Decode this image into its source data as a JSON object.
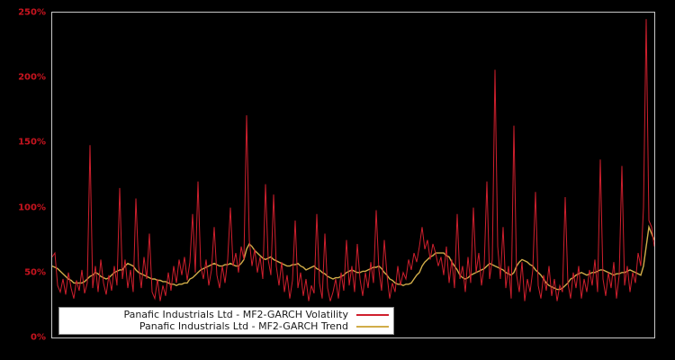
{
  "figure": {
    "background_color": "#000000",
    "plot_border_color": "#c8c8c8"
  },
  "y_axis": {
    "label_color": "#c8141f",
    "ticks": [
      {
        "value": 0,
        "label": "0%"
      },
      {
        "value": 50,
        "label": "50%"
      },
      {
        "value": 100,
        "label": "100%"
      },
      {
        "value": 150,
        "label": "150%"
      },
      {
        "value": 200,
        "label": "200%"
      },
      {
        "value": 250,
        "label": "250%"
      }
    ]
  },
  "legend": {
    "entries": [
      {
        "label": "Panafic Industrials Ltd - MF2-GARCH Volatility",
        "color": "#cf1f2d"
      },
      {
        "label": "Panafic Industrials Ltd - MF2-GARCH Trend",
        "color": "#d1ad49"
      }
    ]
  },
  "chart_data": {
    "type": "line",
    "title": "",
    "xlabel": "",
    "ylabel": "",
    "x_axis_labels": "none (unlabeled time index)",
    "ylim": [
      0,
      250
    ],
    "y_unit": "percent",
    "grid": false,
    "legend_position": "inside bottom-left",
    "series": [
      {
        "name": "Panafic Industrials Ltd - MF2-GARCH Volatility",
        "color": "#cf1f2d",
        "line_width": 1,
        "values": [
          62,
          65,
          40,
          35,
          45,
          33,
          50,
          38,
          30,
          44,
          36,
          52,
          34,
          42,
          148,
          38,
          55,
          35,
          60,
          42,
          33,
          48,
          36,
          55,
          40,
          115,
          45,
          60,
          38,
          52,
          35,
          107,
          55,
          38,
          62,
          45,
          80,
          35,
          30,
          45,
          28,
          40,
          32,
          50,
          36,
          55,
          42,
          60,
          48,
          62,
          44,
          58,
          95,
          50,
          120,
          55,
          45,
          60,
          40,
          52,
          85,
          48,
          38,
          55,
          42,
          60,
          100,
          55,
          65,
          50,
          70,
          60,
          171,
          75,
          55,
          68,
          50,
          62,
          45,
          118,
          60,
          48,
          110,
          55,
          40,
          58,
          35,
          48,
          30,
          44,
          90,
          38,
          50,
          32,
          45,
          28,
          40,
          34,
          95,
          42,
          30,
          80,
          38,
          28,
          35,
          45,
          30,
          50,
          36,
          75,
          40,
          55,
          35,
          72,
          45,
          32,
          50,
          38,
          58,
          42,
          98,
          52,
          36,
          75,
          48,
          30,
          42,
          35,
          55,
          40,
          50,
          45,
          60,
          52,
          65,
          58,
          70,
          85,
          68,
          75,
          60,
          72,
          65,
          55,
          62,
          48,
          70,
          42,
          60,
          38,
          95,
          45,
          55,
          35,
          62,
          42,
          100,
          50,
          65,
          40,
          55,
          120,
          45,
          60,
          206,
          70,
          45,
          85,
          38,
          55,
          30,
          163,
          48,
          35,
          58,
          28,
          45,
          35,
          52,
          112,
          40,
          30,
          48,
          36,
          55,
          32,
          45,
          28,
          40,
          35,
          108,
          42,
          30,
          50,
          38,
          55,
          30,
          45,
          35,
          52,
          40,
          60,
          35,
          137,
          45,
          32,
          50,
          38,
          58,
          30,
          48,
          132,
          40,
          55,
          35,
          50,
          42,
          65,
          55,
          100,
          245,
          90,
          85,
          70
        ]
      },
      {
        "name": "Panafic Industrials Ltd - MF2-GARCH Trend",
        "color": "#d1ad49",
        "line_width": 1.4,
        "values": [
          55,
          54,
          53,
          51,
          49,
          47,
          45,
          44,
          42,
          42,
          42,
          42,
          43,
          45,
          47,
          48,
          50,
          49,
          47,
          46,
          45,
          46,
          48,
          50,
          51,
          52,
          52,
          55,
          57,
          56,
          55,
          52,
          50,
          49,
          48,
          47,
          46,
          45,
          45,
          44,
          44,
          43,
          43,
          42,
          41,
          41,
          40,
          41,
          41,
          42,
          42,
          45,
          46,
          48,
          50,
          52,
          53,
          54,
          55,
          56,
          57,
          56,
          55,
          55,
          56,
          56,
          57,
          56,
          55,
          55,
          57,
          60,
          68,
          72,
          70,
          67,
          65,
          63,
          61,
          60,
          61,
          62,
          60,
          59,
          58,
          57,
          56,
          55,
          55,
          56,
          56,
          57,
          55,
          54,
          52,
          53,
          54,
          55,
          53,
          52,
          50,
          49,
          47,
          46,
          45,
          46,
          46,
          47,
          48,
          50,
          51,
          52,
          51,
          50,
          50,
          51,
          51,
          52,
          53,
          54,
          54,
          55,
          53,
          50,
          48,
          45,
          44,
          42,
          41,
          41,
          40,
          41,
          41,
          42,
          45,
          48,
          50,
          55,
          58,
          60,
          62,
          63,
          65,
          65,
          65,
          65,
          63,
          62,
          58,
          55,
          52,
          48,
          46,
          45,
          46,
          48,
          49,
          50,
          51,
          52,
          53,
          55,
          57,
          56,
          55,
          54,
          53,
          52,
          50,
          49,
          48,
          50,
          55,
          58,
          60,
          59,
          58,
          56,
          55,
          52,
          50,
          48,
          45,
          42,
          40,
          39,
          38,
          37,
          37,
          38,
          40,
          42,
          45,
          46,
          48,
          49,
          50,
          49,
          48,
          49,
          50,
          50,
          51,
          52,
          52,
          51,
          50,
          49,
          48,
          49,
          49,
          50,
          50,
          51,
          52,
          51,
          50,
          49,
          48,
          55,
          70,
          85,
          80,
          75
        ]
      }
    ]
  }
}
